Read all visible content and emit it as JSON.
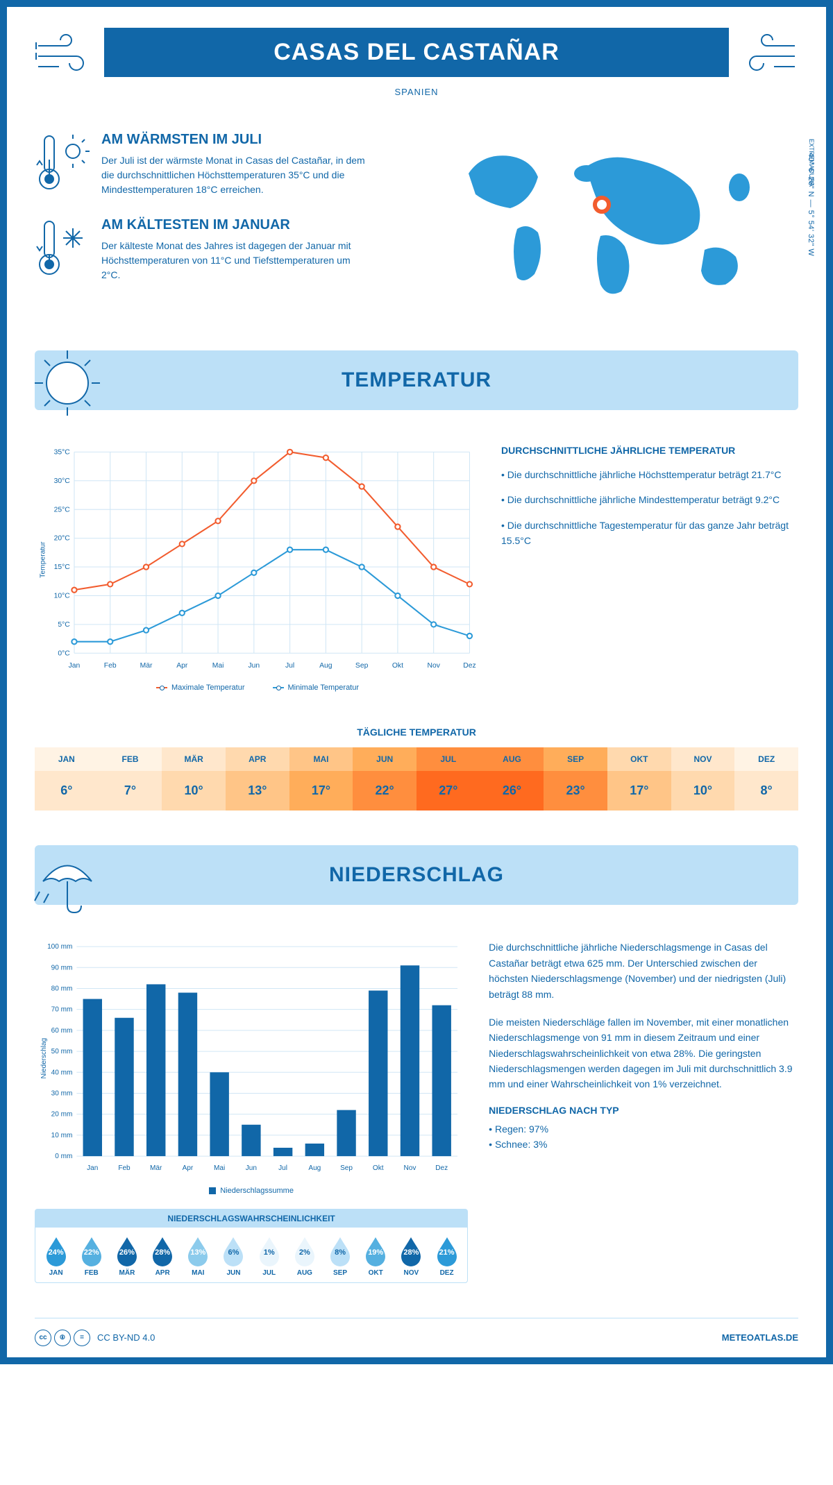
{
  "header": {
    "title": "CASAS DEL CASTAÑAR",
    "subtitle": "SPANIEN",
    "coords": "40° 6' 26\" N — 5° 54' 32\" W",
    "region": "EXTREMADURA"
  },
  "facts": {
    "warm": {
      "title": "AM WÄRMSTEN IM JULI",
      "text": "Der Juli ist der wärmste Monat in Casas del Castañar, in dem die durchschnittlichen Höchsttemperaturen 35°C und die Mindesttemperaturen 18°C erreichen."
    },
    "cold": {
      "title": "AM KÄLTESTEN IM JANUAR",
      "text": "Der kälteste Monat des Jahres ist dagegen der Januar mit Höchsttemperaturen von 11°C und Tiefsttemperaturen um 2°C."
    }
  },
  "temp_section": {
    "title": "TEMPERATUR",
    "notes_title": "DURCHSCHNITTLICHE JÄHRLICHE TEMPERATUR",
    "note1": "• Die durchschnittliche jährliche Höchsttemperatur beträgt 21.7°C",
    "note2": "• Die durchschnittliche jährliche Mindesttemperatur beträgt 9.2°C",
    "note3": "• Die durchschnittliche Tagestemperatur für das ganze Jahr beträgt 15.5°C",
    "legend_max": "Maximale Temperatur",
    "legend_min": "Minimale Temperatur",
    "daily_title": "TÄGLICHE TEMPERATUR",
    "chart": {
      "type": "line",
      "months": [
        "Jan",
        "Feb",
        "Mär",
        "Apr",
        "Mai",
        "Jun",
        "Jul",
        "Aug",
        "Sep",
        "Okt",
        "Nov",
        "Dez"
      ],
      "max": [
        11,
        12,
        15,
        19,
        23,
        30,
        35,
        34,
        29,
        22,
        15,
        12
      ],
      "min": [
        2,
        2,
        4,
        7,
        10,
        14,
        18,
        18,
        15,
        10,
        5,
        3
      ],
      "max_color": "#f25c2e",
      "min_color": "#2c9ad8",
      "ylim": [
        0,
        35
      ],
      "ytick_step": 5,
      "ylabel": "Temperatur",
      "grid_color": "#d0e6f5",
      "y_suffix": "°C"
    },
    "daily": {
      "months": [
        "JAN",
        "FEB",
        "MÄR",
        "APR",
        "MAI",
        "JUN",
        "JUL",
        "AUG",
        "SEP",
        "OKT",
        "NOV",
        "DEZ"
      ],
      "temps": [
        "6°",
        "7°",
        "10°",
        "13°",
        "17°",
        "22°",
        "27°",
        "26°",
        "23°",
        "17°",
        "10°",
        "8°"
      ],
      "colors_top": [
        "#fff3e4",
        "#fff3e4",
        "#ffe7cc",
        "#ffd9ae",
        "#ffc587",
        "#ffad5a",
        "#ff8e3e",
        "#ff8e3e",
        "#ffad5a",
        "#ffd9ae",
        "#ffe7cc",
        "#fff3e4"
      ],
      "colors_bot": [
        "#ffe7cc",
        "#ffe7cc",
        "#ffd9ae",
        "#ffc587",
        "#ffad5a",
        "#ff8e3e",
        "#ff6a1f",
        "#ff6a1f",
        "#ff8e3e",
        "#ffc587",
        "#ffd9ae",
        "#ffe7cc"
      ]
    }
  },
  "precip_section": {
    "title": "NIEDERSCHLAG",
    "chart": {
      "type": "bar",
      "months": [
        "Jan",
        "Feb",
        "Mär",
        "Apr",
        "Mai",
        "Jun",
        "Jul",
        "Aug",
        "Sep",
        "Okt",
        "Nov",
        "Dez"
      ],
      "values": [
        75,
        66,
        82,
        78,
        40,
        15,
        4,
        6,
        22,
        79,
        91,
        72
      ],
      "bar_color": "#1167a8",
      "ylim": [
        0,
        100
      ],
      "ytick_step": 10,
      "ylabel": "Niederschlag",
      "y_suffix": " mm",
      "legend": "Niederschlagssumme",
      "grid_color": "#d0e6f5"
    },
    "text1": "Die durchschnittliche jährliche Niederschlagsmenge in Casas del Castañar beträgt etwa 625 mm. Der Unterschied zwischen der höchsten Niederschlagsmenge (November) und der niedrigsten (Juli) beträgt 88 mm.",
    "text2": "Die meisten Niederschläge fallen im November, mit einer monatlichen Niederschlagsmenge von 91 mm in diesem Zeitraum und einer Niederschlagswahrscheinlichkeit von etwa 28%. Die geringsten Niederschlagsmengen werden dagegen im Juli mit durchschnittlich 3.9 mm und einer Wahrscheinlichkeit von 1% verzeichnet.",
    "by_type_title": "NIEDERSCHLAG NACH TYP",
    "by_type_rain": "• Regen: 97%",
    "by_type_snow": "• Schnee: 3%",
    "prob": {
      "title": "NIEDERSCHLAGSWAHRSCHEINLICHKEIT",
      "months": [
        "JAN",
        "FEB",
        "MÄR",
        "APR",
        "MAI",
        "JUN",
        "JUL",
        "AUG",
        "SEP",
        "OKT",
        "NOV",
        "DEZ"
      ],
      "values": [
        "24%",
        "22%",
        "26%",
        "28%",
        "13%",
        "6%",
        "1%",
        "2%",
        "8%",
        "19%",
        "28%",
        "21%"
      ],
      "fills": [
        "#2c9ad8",
        "#55b0e0",
        "#1167a8",
        "#1167a8",
        "#8ccbec",
        "#bce0f7",
        "#eaf5fc",
        "#eaf5fc",
        "#bce0f7",
        "#55b0e0",
        "#1167a8",
        "#2c9ad8"
      ],
      "text_colors": [
        "#fff",
        "#fff",
        "#fff",
        "#fff",
        "#fff",
        "#1167a8",
        "#1167a8",
        "#1167a8",
        "#1167a8",
        "#fff",
        "#fff",
        "#fff"
      ]
    }
  },
  "footer": {
    "license": "CC BY-ND 4.0",
    "site": "METEOATLAS.DE"
  },
  "colors": {
    "primary": "#1167a8",
    "light": "#bce0f7",
    "orange": "#f25c2e"
  }
}
